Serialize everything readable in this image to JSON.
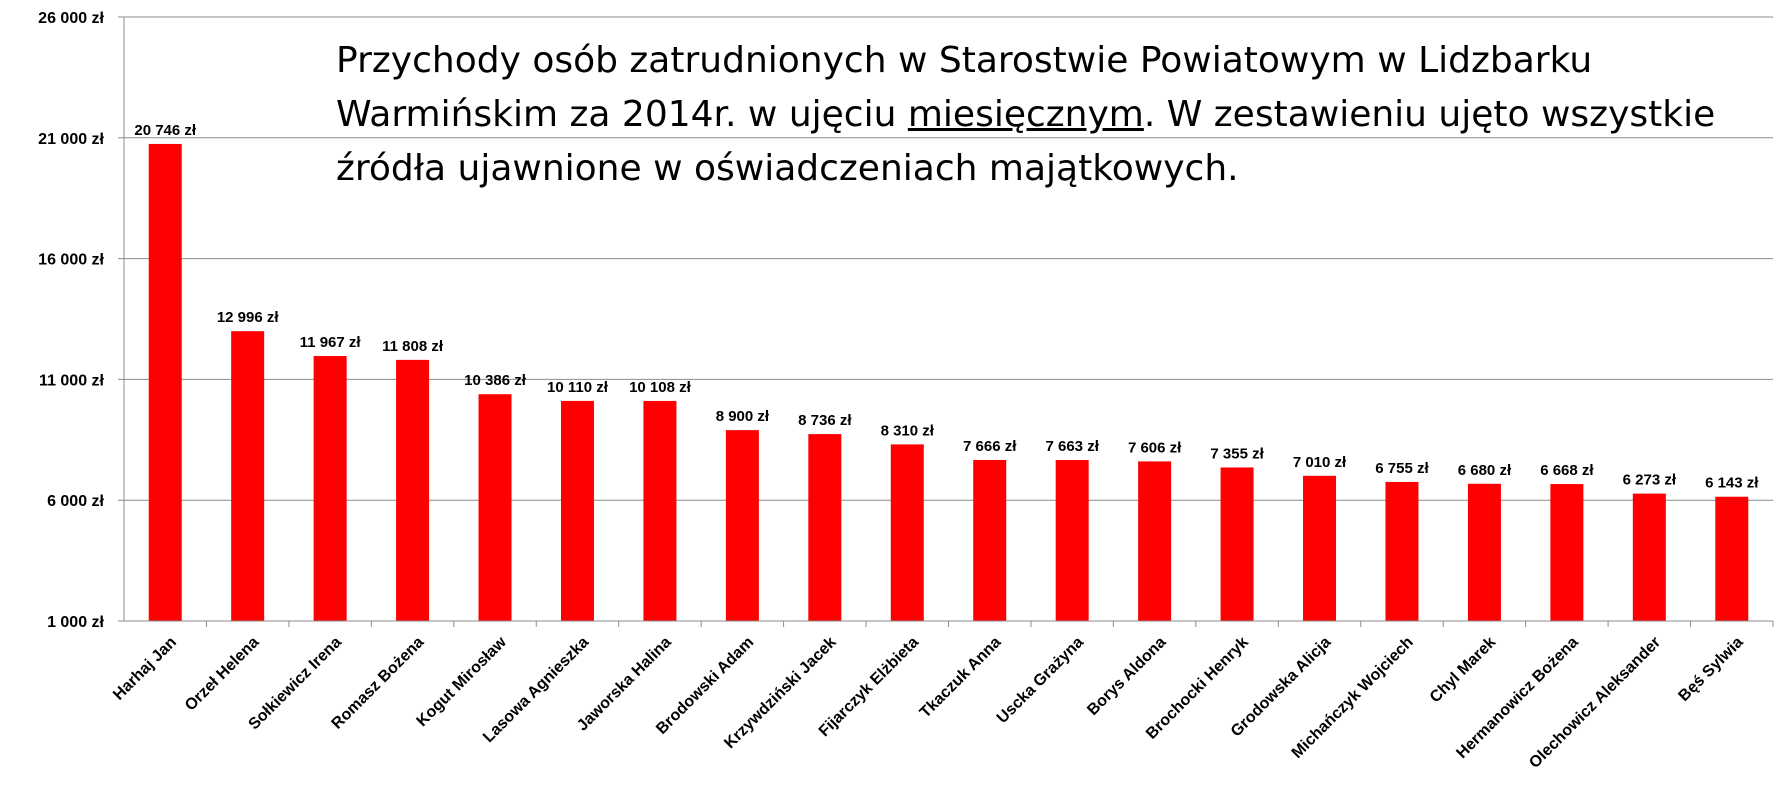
{
  "title": {
    "part1": "Przychody osób zatrudnionych w Starostwie Powiatowym w Lidzbarku Warmińskim za 2014r. w ujęciu ",
    "underlined": "miesięcznym",
    "part2": ". W zestawieniu ujęto wszystkie źródła ujawnione w oświadczeniach majątkowych."
  },
  "chart_data": {
    "type": "bar",
    "title": "Przychody osób zatrudnionych w Starostwie Powiatowym w Lidzbarku Warmińskim za 2014r. w ujęciu miesięcznym. W zestawieniu ujęto wszystkie źródła ujawnione w oświadczeniach majątkowych.",
    "categories": [
      "Harhaj Jan",
      "Orzeł Helena",
      "Sołkiewicz Irena",
      "Romasz Bożena",
      "Kogut Mirosław",
      "Lasowa Agnieszka",
      "Jaworska Halina",
      "Brodowski Adam",
      "Krzywdziński Jacek",
      "Fijarczyk Elżbieta",
      "Tkaczuk Anna",
      "Uscka Grażyna",
      "Borys Aldona",
      "Brochocki Henryk",
      "Grodowska Alicja",
      "Michańczyk Wojciech",
      "Chyl Marek",
      "Hermanowicz Bożena",
      "Olechowicz Aleksander",
      "Bęś Sylwia"
    ],
    "values": [
      20746,
      12996,
      11967,
      11808,
      10386,
      10110,
      10108,
      8900,
      8736,
      8310,
      7666,
      7663,
      7606,
      7355,
      7010,
      6755,
      6680,
      6668,
      6273,
      6143
    ],
    "data_labels": [
      "20 746 zł",
      "12 996 zł",
      "11 967 zł",
      "11 808 zł",
      "10 386 zł",
      "10 110 zł",
      "10 108 zł",
      "8 900 zł",
      "8 736 zł",
      "8 310 zł",
      "7 666 zł",
      "7 663 zł",
      "7 606 zł",
      "7 355 zł",
      "7 010 zł",
      "6 755 zł",
      "6 680 zł",
      "6 668 zł",
      "6 273 zł",
      "6 143 zł"
    ],
    "y_ticks": [
      1000,
      6000,
      11000,
      16000,
      21000,
      26000
    ],
    "y_tick_labels": [
      "1 000 zł",
      "6 000 zł",
      "11 000 zł",
      "16 000 zł",
      "21 000 zł",
      "26 000 zł"
    ],
    "ylim": [
      1000,
      26000
    ],
    "grid": true,
    "legend": "none",
    "bar_color": "#ff0000",
    "grid_color": "#8c8c8c"
  }
}
